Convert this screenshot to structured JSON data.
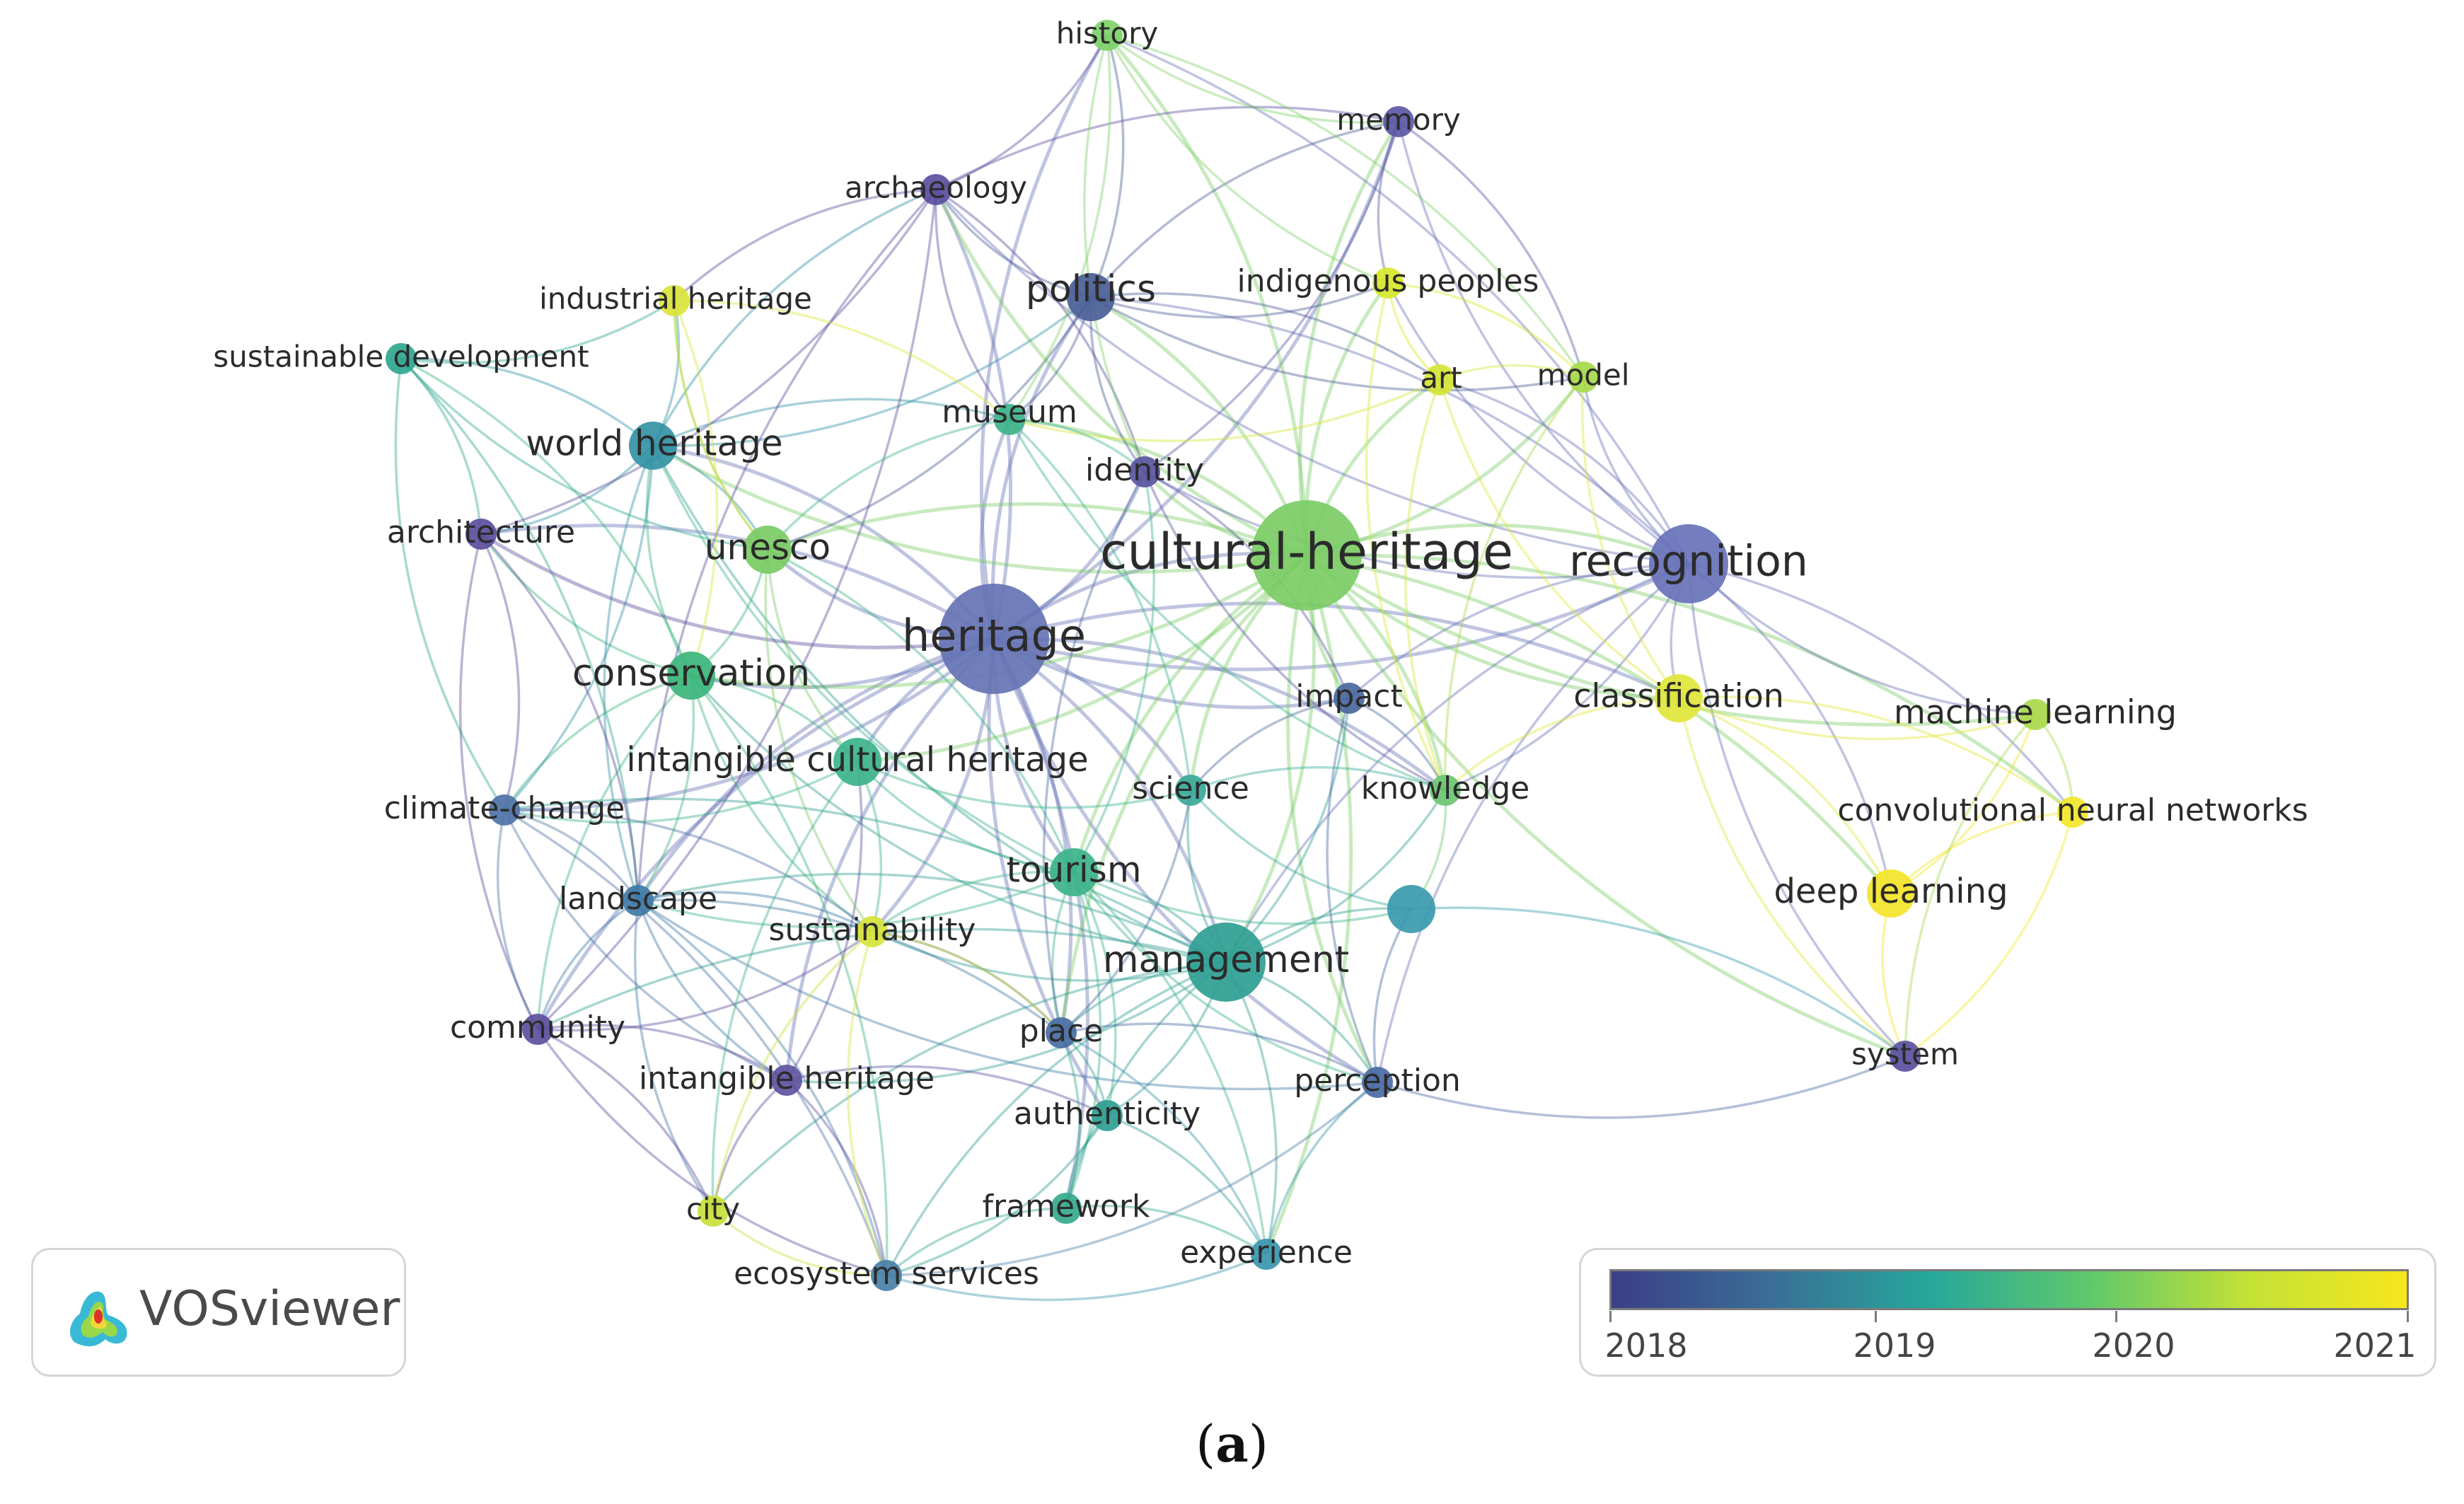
{
  "nodes": [
    {
      "id": "history",
      "label": "history",
      "color": "#7fd16a",
      "size": "s"
    },
    {
      "id": "memory",
      "label": "memory",
      "color": "#5b57a6",
      "size": "s"
    },
    {
      "id": "archaeology",
      "label": "archaeology",
      "color": "#5b4f9e",
      "size": "s"
    },
    {
      "id": "industrial-heritage",
      "label": "industrial heritage",
      "color": "#d9e43a",
      "size": "s"
    },
    {
      "id": "politics",
      "label": "politics",
      "color": "#4a5e96",
      "size": "m"
    },
    {
      "id": "indigenous-peoples",
      "label": "indigenous peoples",
      "color": "#d8e62e",
      "size": "s"
    },
    {
      "id": "sustainable-development",
      "label": "sustainable development",
      "color": "#2fa68e",
      "size": "s"
    },
    {
      "id": "art",
      "label": "art",
      "color": "#d5e536",
      "size": "s"
    },
    {
      "id": "model",
      "label": "model",
      "color": "#a8d94a",
      "size": "s"
    },
    {
      "id": "museum",
      "label": "museum",
      "color": "#3db38a",
      "size": "s"
    },
    {
      "id": "world-heritage",
      "label": "world heritage",
      "color": "#3392a4",
      "size": "m"
    },
    {
      "id": "identity",
      "label": "identity",
      "color": "#5a55a0",
      "size": "s"
    },
    {
      "id": "architecture",
      "label": "architecture",
      "color": "#5c4d9c",
      "size": "s"
    },
    {
      "id": "unesco",
      "label": "unesco",
      "color": "#7acb64",
      "size": "m"
    },
    {
      "id": "cultural-heritage",
      "label": "cultural-heritage",
      "color": "#7ccc66",
      "size": "xl"
    },
    {
      "id": "recognition",
      "label": "recognition",
      "color": "#6872b8",
      "size": "l"
    },
    {
      "id": "heritage",
      "label": "heritage",
      "color": "#6673b4",
      "size": "xl"
    },
    {
      "id": "conservation",
      "label": "conservation",
      "color": "#3cb57c",
      "size": "m"
    },
    {
      "id": "impact",
      "label": "impact",
      "color": "#4a68a0",
      "size": "s"
    },
    {
      "id": "classification",
      "label": "classification",
      "color": "#e0e63a",
      "size": "m"
    },
    {
      "id": "machine-learning",
      "label": "machine learning",
      "color": "#a7d94a",
      "size": "s"
    },
    {
      "id": "intangible-cultural-heritage",
      "label": "intangible cultural heritage",
      "color": "#3cb38a",
      "size": "m"
    },
    {
      "id": "science",
      "label": "science",
      "color": "#3aa998",
      "size": "s"
    },
    {
      "id": "knowledge",
      "label": "knowledge",
      "color": "#6cc672",
      "size": "s"
    },
    {
      "id": "climate-change",
      "label": "climate-change",
      "color": "#4e72a6",
      "size": "s"
    },
    {
      "id": "convolutional-neural-networks",
      "label": "convolutional neural networks",
      "color": "#f2e62a",
      "size": "s"
    },
    {
      "id": "tourism",
      "label": "tourism",
      "color": "#3cb38a",
      "size": "m"
    },
    {
      "id": "unlabeled",
      "label": "",
      "color": "#3a9aac",
      "size": "m"
    },
    {
      "id": "deep-learning",
      "label": "deep learning",
      "color": "#f4e42a",
      "size": "m"
    },
    {
      "id": "landscape",
      "label": "landscape",
      "color": "#3f7aa6",
      "size": "s"
    },
    {
      "id": "sustainability",
      "label": "sustainability",
      "color": "#d6e33a",
      "size": "s"
    },
    {
      "id": "management",
      "label": "management",
      "color": "#2f9e92",
      "size": "l"
    },
    {
      "id": "community",
      "label": "community",
      "color": "#5d4f9e",
      "size": "s"
    },
    {
      "id": "place",
      "label": "place",
      "color": "#4a6ca2",
      "size": "s"
    },
    {
      "id": "perception",
      "label": "perception",
      "color": "#4a6aa4",
      "size": "s"
    },
    {
      "id": "system",
      "label": "system",
      "color": "#5a50a0",
      "size": "s"
    },
    {
      "id": "intangible-heritage",
      "label": "intangible heritage",
      "color": "#5f52a0",
      "size": "s"
    },
    {
      "id": "authenticity",
      "label": "authenticity",
      "color": "#2f9e92",
      "size": "s"
    },
    {
      "id": "city",
      "label": "city",
      "color": "#c9e03a",
      "size": "s"
    },
    {
      "id": "framework",
      "label": "framework",
      "color": "#35a98c",
      "size": "s"
    },
    {
      "id": "experience",
      "label": "experience",
      "color": "#3a96ac",
      "size": "s"
    },
    {
      "id": "ecosystem-services",
      "label": "ecosystem services",
      "color": "#4a80a8",
      "size": "s"
    }
  ],
  "legend": {
    "ticks": [
      "2018",
      "2019",
      "2020",
      "2021"
    ],
    "colors": [
      "#3b3f86",
      "#3a6e97",
      "#26a79a",
      "#5fc86b",
      "#c3e136",
      "#f7e71c"
    ]
  },
  "logo": {
    "text": "VOSviewer",
    "icon": "vosviewer-logo-icon"
  },
  "caption": {
    "open": "(",
    "letter": "a",
    "close": ")"
  }
}
